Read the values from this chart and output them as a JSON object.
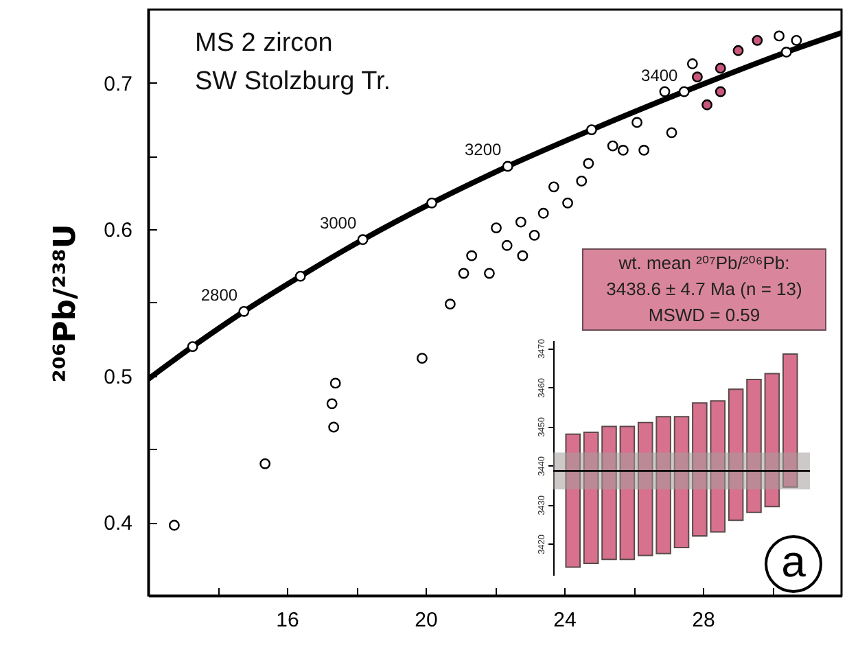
{
  "chart_data": [
    {
      "type": "scatter",
      "title": "MS 2 zircon",
      "subtitle": "SW Stolzburg Tr.",
      "ylabel": "²⁰⁶Pb/²³⁸U",
      "marker": "circle",
      "xlim": [
        12,
        32
      ],
      "xticks": [
        {
          "value": 14,
          "label": null
        },
        16,
        {
          "value": 18,
          "label": null
        },
        20,
        {
          "value": 22,
          "label": null
        },
        24,
        {
          "value": 26,
          "label": null
        },
        28,
        {
          "value": 30,
          "label": null
        }
      ],
      "ylim": [
        0.35,
        0.75
      ],
      "yticks": [
        0.4,
        {
          "value": 0.45,
          "label": null
        },
        0.5,
        {
          "value": 0.55,
          "label": null
        },
        0.6,
        {
          "value": 0.65,
          "label": null
        },
        0.7
      ],
      "series": [
        {
          "type": "line",
          "marker": "none",
          "color": "#000000",
          "x": [
            12.01,
            13.28,
            14.76,
            16.39,
            18.19,
            20.18,
            22.37,
            24.79,
            27.46,
            30.41,
            31.99
          ],
          "values": [
            0.498,
            0.52,
            0.544,
            0.568,
            0.593,
            0.618,
            0.643,
            0.668,
            0.694,
            0.721,
            0.734
          ]
        },
        {
          "color": "#ffffff",
          "x": [
            12.75,
            15.37,
            17.4,
            17.3,
            17.35,
            19.9,
            20.71,
            21.1,
            21.84,
            21.33,
            22.04,
            22.35,
            22.75,
            22.8,
            23.14,
            23.4,
            23.7,
            24.1,
            24.5,
            24.7,
            25.4,
            25.7,
            26.1,
            26.3,
            26.9,
            27.1,
            27.7,
            30.2,
            30.7
          ],
          "values": [
            0.398,
            0.44,
            0.495,
            0.481,
            0.465,
            0.512,
            0.549,
            0.57,
            0.57,
            0.582,
            0.601,
            0.589,
            0.605,
            0.582,
            0.596,
            0.611,
            0.629,
            0.618,
            0.633,
            0.645,
            0.657,
            0.654,
            0.673,
            0.654,
            0.694,
            0.666,
            0.713,
            0.732,
            0.729
          ]
        },
        {
          "color": "#c8577a",
          "x": [
            27.84,
            28.12,
            28.51,
            28.51,
            29.02,
            29.57
          ],
          "values": [
            0.704,
            0.685,
            0.694,
            0.71,
            0.722,
            0.729
          ]
        },
        {
          "color": "#ffffff",
          "x": [
            13.28,
            14.76,
            16.39,
            18.19,
            20.18,
            22.37,
            24.79,
            27.46,
            30.41
          ],
          "values": [
            0.52,
            0.544,
            0.568,
            0.593,
            0.618,
            0.643,
            0.668,
            0.694,
            0.721
          ]
        }
      ],
      "annotations": [
        {
          "text": "2800",
          "x": 14.76,
          "y": 0.544
        },
        {
          "text": "3000",
          "x": 18.19,
          "y": 0.593
        },
        {
          "text": "3200",
          "x": 22.37,
          "y": 0.643
        },
        {
          "text": "3400",
          "x": 27.46,
          "y": 0.694
        }
      ]
    },
    {
      "type": "bar",
      "categories": [
        null,
        null,
        null,
        null,
        null,
        null,
        null,
        null,
        null,
        null,
        null,
        null,
        null
      ],
      "color": "#d8718e",
      "values": [
        34,
        33.5,
        34,
        34,
        34,
        35,
        33.5,
        34,
        33.5,
        33.5,
        34,
        34,
        34
      ],
      "base": [
        3414,
        3415,
        3416,
        3416,
        3417,
        3417.5,
        3419,
        3422,
        3423,
        3426,
        3428,
        3429.5,
        3434.5
      ],
      "ylim": [
        3412,
        3472
      ],
      "yticks": [
        3420,
        3430,
        3440,
        3450,
        3460,
        3470
      ],
      "tick_labels": "y",
      "ref_lines": [
        {
          "axis": "y",
          "value": 3438.6
        }
      ],
      "bands": [
        {
          "axis": "y",
          "from": 3433.9,
          "to": 3443.3,
          "color": "#a59c9c"
        }
      ],
      "annotations": [
        "wt. mean ²⁰⁷Pb/²⁰⁶Pb:",
        "3438.6 ± 4.7 Ma (n = 13)",
        "MSWD = 0.59",
        "a"
      ]
    }
  ]
}
